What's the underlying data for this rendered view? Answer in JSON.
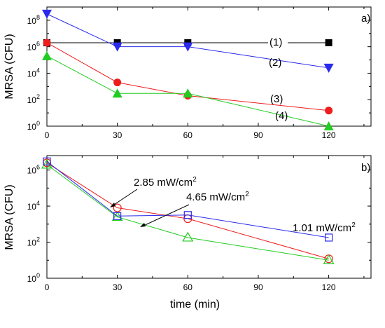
{
  "chart_data": [
    {
      "type": "line",
      "panel_label": "a)",
      "ylabel": "MRSA (CFU)",
      "xlabel": "",
      "x": [
        0,
        30,
        60,
        120
      ],
      "xlim": [
        0,
        138
      ],
      "x_ticks": [
        0,
        30,
        60,
        90,
        120
      ],
      "y_scale": "log",
      "ylim_log10": [
        0,
        9
      ],
      "y_ticks": [
        {
          "base": "10",
          "exp": "0",
          "log": 0
        },
        {
          "base": "10",
          "exp": "2",
          "log": 2
        },
        {
          "base": "10",
          "exp": "4",
          "log": 4
        },
        {
          "base": "10",
          "exp": "6",
          "log": 6
        },
        {
          "base": "10",
          "exp": "8",
          "log": 8
        }
      ],
      "grid": false,
      "series": [
        {
          "name": "(1)",
          "color": "#000000",
          "marker": "filled-square",
          "values": [
            2000000,
            2000000,
            2000000,
            2000000
          ]
        },
        {
          "name": "(2)",
          "color": "#2a2aee",
          "marker": "filled-down-triangle",
          "values": [
            300000000,
            1000000,
            1000000,
            25000
          ]
        },
        {
          "name": "(3)",
          "color": "#ee1c1c",
          "marker": "filled-circle",
          "values": [
            2000000,
            2000,
            200,
            15
          ]
        },
        {
          "name": "(4)",
          "color": "#22cc22",
          "marker": "filled-up-triangle",
          "values": [
            200000,
            300,
            300,
            1
          ]
        }
      ]
    },
    {
      "type": "line",
      "panel_label": "b)",
      "ylabel": "MRSA (CFU)",
      "xlabel": "time (min)",
      "x": [
        0,
        30,
        60,
        120
      ],
      "xlim": [
        0,
        138
      ],
      "x_ticks": [
        0,
        30,
        60,
        90,
        120
      ],
      "y_scale": "log",
      "ylim_log10": [
        0,
        6.8
      ],
      "y_ticks": [
        {
          "base": "10",
          "exp": "0",
          "log": 0
        },
        {
          "base": "10",
          "exp": "2",
          "log": 2
        },
        {
          "base": "10",
          "exp": "4",
          "log": 4
        },
        {
          "base": "10",
          "exp": "6",
          "log": 6
        }
      ],
      "grid": false,
      "series": [
        {
          "name": "2.85 mW/cm",
          "name_sup": "2",
          "color": "#ee1c1c",
          "marker": "open-circle",
          "values": [
            2500000,
            8000,
            2000,
            12
          ]
        },
        {
          "name": "4.65 mW/cm",
          "name_sup": "2",
          "color": "#22cc22",
          "marker": "open-up-triangle",
          "values": [
            2000000,
            2500,
            180,
            10
          ]
        },
        {
          "name": "1.01 mW/cm",
          "name_sup": "2",
          "color": "#2a2aee",
          "marker": "open-square",
          "values": [
            3000000,
            2800,
            3200,
            180
          ]
        }
      ]
    }
  ]
}
